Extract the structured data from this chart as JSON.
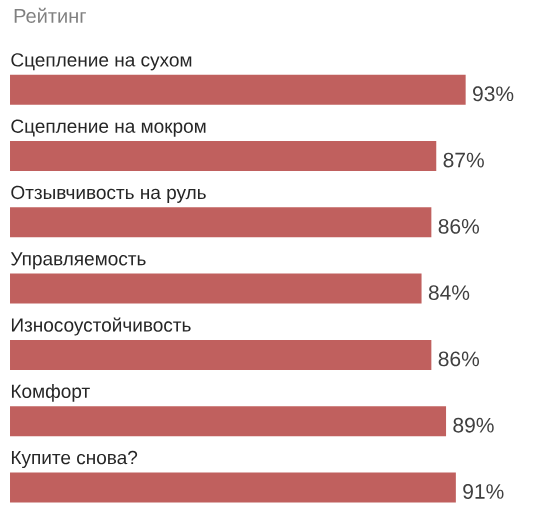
{
  "chart_data": {
    "type": "bar",
    "orientation": "horizontal",
    "title": "Рейтинг",
    "categories": [
      "Сцепление на сухом",
      "Сцепление на мокром",
      "Отзывчивость на руль",
      "Управляемость",
      "Износоустойчивость",
      "Комфорт",
      "Купите снова?"
    ],
    "values": [
      93,
      87,
      86,
      84,
      86,
      89,
      91
    ],
    "value_labels": [
      "93%",
      "87%",
      "86%",
      "84%",
      "86%",
      "89%",
      "91%"
    ],
    "color": "#c0605e"
  }
}
